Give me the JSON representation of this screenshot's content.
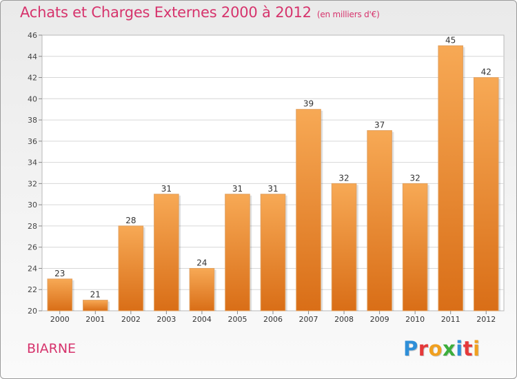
{
  "header": {
    "title": "Achats et Charges Externes 2000 à 2012",
    "subtitle": "(en milliers d'€)"
  },
  "footer": {
    "commune": "BIARNE",
    "logo": {
      "text": "Proxiti",
      "letters": [
        {
          "ch": "P",
          "color": "#2f8fd8"
        },
        {
          "ch": "r",
          "color": "#e5393a"
        },
        {
          "ch": "o",
          "color": "#f0a020"
        },
        {
          "ch": "x",
          "color": "#3cae3c"
        },
        {
          "ch": "i",
          "color": "#2f8fd8"
        },
        {
          "ch": "t",
          "color": "#e5393a"
        },
        {
          "ch": "i",
          "color": "#f0a020"
        }
      ]
    }
  },
  "chart_data": {
    "type": "bar",
    "title": "Achats et Charges Externes 2000 à 2012",
    "subtitle": "(en milliers d'€)",
    "categories": [
      "2000",
      "2001",
      "2002",
      "2003",
      "2004",
      "2005",
      "2006",
      "2007",
      "2008",
      "2009",
      "2010",
      "2011",
      "2012"
    ],
    "values": [
      23,
      21,
      28,
      31,
      24,
      31,
      31,
      39,
      32,
      37,
      32,
      45,
      42
    ],
    "ylim": [
      20,
      46
    ],
    "yticks": [
      20,
      22,
      24,
      26,
      28,
      30,
      32,
      34,
      36,
      38,
      40,
      42,
      44,
      46
    ],
    "grid": true,
    "bar_color_top": "#f7a955",
    "bar_color_bottom": "#d96e17"
  }
}
